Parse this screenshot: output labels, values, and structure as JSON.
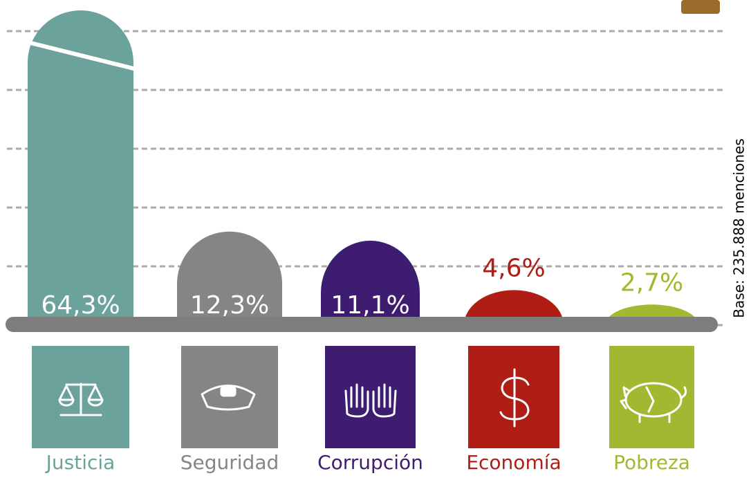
{
  "chart_data": {
    "type": "bar",
    "categories": [
      "Justicia",
      "Seguridad",
      "Corrupción",
      "Economía",
      "Pobreza"
    ],
    "values": [
      64.3,
      12.3,
      11.1,
      4.6,
      2.7
    ],
    "value_labels": [
      "64,3%",
      "12,3%",
      "11,1%",
      "4,6%",
      "2,7%"
    ],
    "colors": [
      "#6ba39c",
      "#858585",
      "#3e1c6f",
      "#b01d15",
      "#a3b830"
    ],
    "ylim": [
      0,
      40
    ],
    "note": "Base: 235.888 menciones"
  }
}
